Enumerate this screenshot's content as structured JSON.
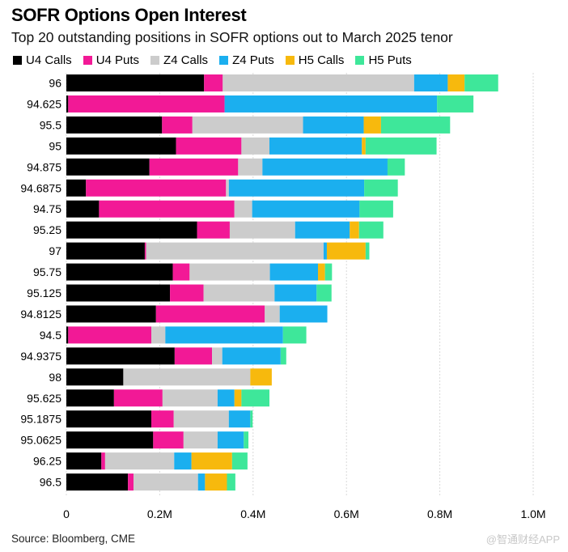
{
  "title": "SOFR Options Open Interest",
  "subtitle": "Top 20 outstanding positions in SOFR options out to March 2025 tenor",
  "source": "Source: Bloomberg, CME",
  "watermark": "@智通财经APP",
  "chart_data": {
    "type": "bar",
    "orientation": "horizontal",
    "stacked": true,
    "categories": [
      "96",
      "94.625",
      "95.5",
      "95",
      "94.875",
      "94.6875",
      "94.75",
      "95.25",
      "97",
      "95.75",
      "95.125",
      "94.8125",
      "94.5",
      "94.9375",
      "98",
      "95.625",
      "95.1875",
      "95.0625",
      "96.25",
      "96.5"
    ],
    "series": [
      {
        "name": "U4 Calls",
        "color": "#000000",
        "values": [
          295000,
          4000,
          205000,
          235000,
          178000,
          42000,
          70000,
          280000,
          168000,
          228000,
          222000,
          192000,
          4000,
          232000,
          122000,
          102000,
          182000,
          186000,
          75000,
          132000
        ]
      },
      {
        "name": "U4 Puts",
        "color": "#f21996",
        "values": [
          40000,
          335000,
          65000,
          140000,
          190000,
          300000,
          290000,
          70000,
          3000,
          36000,
          72000,
          233000,
          178000,
          80000,
          0,
          104000,
          48000,
          65000,
          8000,
          12000
        ]
      },
      {
        "name": "Z4 Calls",
        "color": "#cccccc",
        "values": [
          410000,
          0,
          237000,
          60000,
          52000,
          6000,
          38000,
          140000,
          380000,
          172000,
          152000,
          32000,
          30000,
          22000,
          272000,
          118000,
          118000,
          73000,
          148000,
          138000
        ]
      },
      {
        "name": "Z4 Puts",
        "color": "#1bafef",
        "values": [
          72000,
          455000,
          130000,
          198000,
          268000,
          290000,
          230000,
          117000,
          7000,
          103000,
          90000,
          102000,
          252000,
          125000,
          0,
          36000,
          46000,
          56000,
          37000,
          15000
        ]
      },
      {
        "name": "H5 Calls",
        "color": "#f7b90d",
        "values": [
          36000,
          0,
          37000,
          8000,
          0,
          0,
          0,
          20000,
          83000,
          15000,
          0,
          0,
          0,
          0,
          46000,
          15000,
          0,
          0,
          87000,
          47000
        ]
      },
      {
        "name": "H5 Puts",
        "color": "#3ee79a",
        "values": [
          72000,
          78000,
          148000,
          152000,
          37000,
          72000,
          72000,
          52000,
          8000,
          15000,
          32000,
          0,
          50000,
          12000,
          0,
          60000,
          5000,
          10000,
          33000,
          18000
        ]
      }
    ],
    "xticks": [
      "0",
      "0.2M",
      "0.4M",
      "0.6M",
      "0.8M",
      "1.0M"
    ],
    "xlim": [
      0,
      1000000
    ],
    "grid": true
  }
}
